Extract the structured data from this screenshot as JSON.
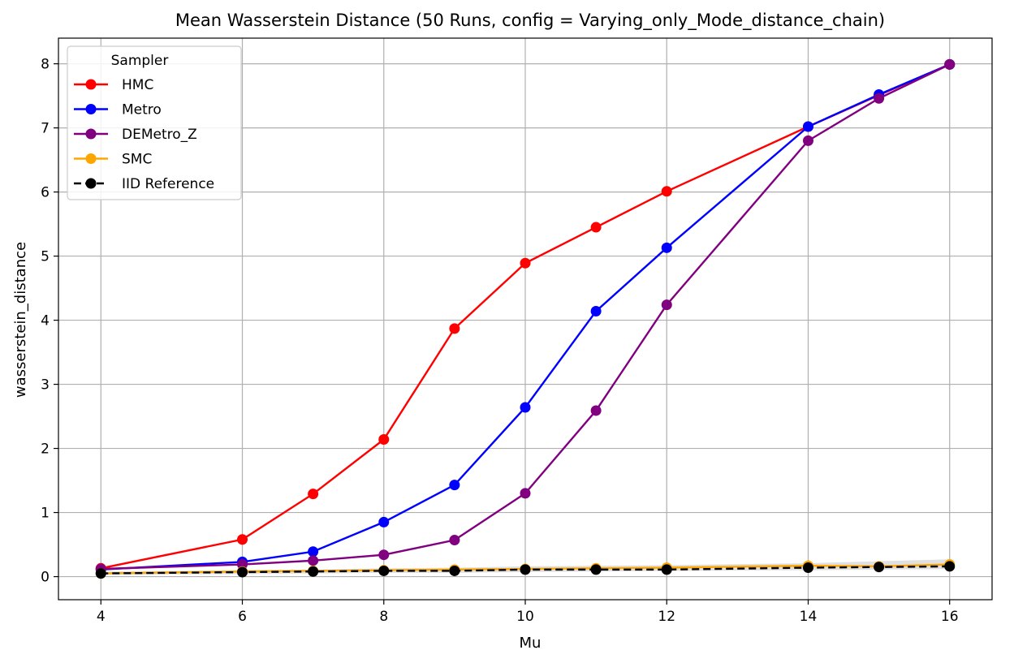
{
  "chart_data": {
    "type": "line",
    "title": "Mean Wasserstein Distance (50 Runs, config = Varying_only_Mode_distance_chain)",
    "xlabel": "Mu",
    "ylabel": "wasserstein_distance",
    "x": [
      4,
      6,
      7,
      8,
      9,
      10,
      11,
      12,
      14,
      15,
      16
    ],
    "xlim": [
      3.4,
      16.6
    ],
    "ylim": [
      -0.36,
      8.4
    ],
    "xticks": [
      4,
      6,
      8,
      10,
      12,
      14,
      16
    ],
    "yticks": [
      0,
      1,
      2,
      3,
      4,
      5,
      6,
      7,
      8
    ],
    "grid": true,
    "legend": {
      "title": "Sampler",
      "placement": "top-left"
    },
    "series": [
      {
        "name": "HMC",
        "color": "#ff0000",
        "dashed": false,
        "values": [
          0.13,
          0.58,
          1.29,
          2.14,
          3.87,
          4.89,
          5.45,
          6.01,
          7.02,
          7.51,
          7.99
        ]
      },
      {
        "name": "Metro",
        "color": "#0000ff",
        "dashed": false,
        "values": [
          0.11,
          0.23,
          0.39,
          0.85,
          1.43,
          2.64,
          4.14,
          5.13,
          7.02,
          7.52,
          7.99
        ]
      },
      {
        "name": "DEMetro_Z",
        "color": "#800080",
        "dashed": false,
        "values": [
          0.12,
          0.19,
          0.25,
          0.34,
          0.57,
          1.3,
          2.59,
          4.24,
          6.8,
          7.46,
          7.99
        ]
      },
      {
        "name": "SMC",
        "color": "#ffa500",
        "dashed": false,
        "band": {
          "lower": [
            0.03,
            0.04,
            0.05,
            0.06,
            0.06,
            0.07,
            0.08,
            0.09,
            0.1,
            0.11,
            0.12
          ],
          "upper": [
            0.08,
            0.1,
            0.11,
            0.13,
            0.14,
            0.16,
            0.17,
            0.18,
            0.21,
            0.24,
            0.27
          ]
        },
        "values": [
          0.05,
          0.08,
          0.09,
          0.1,
          0.11,
          0.12,
          0.13,
          0.14,
          0.17,
          0.16,
          0.19
        ]
      },
      {
        "name": "IID Reference",
        "color": "#000000",
        "dashed": true,
        "values": [
          0.05,
          0.07,
          0.08,
          0.09,
          0.09,
          0.11,
          0.11,
          0.11,
          0.14,
          0.15,
          0.16
        ]
      }
    ]
  },
  "colors": {
    "grid": "#b0b0b0",
    "band": "#bbbbbb"
  }
}
